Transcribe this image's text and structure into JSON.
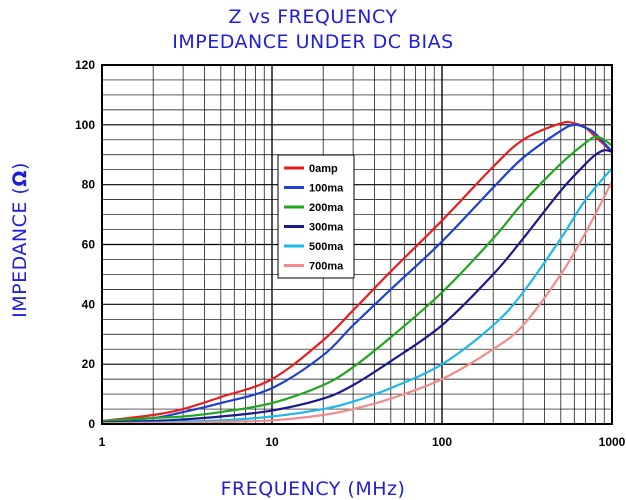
{
  "chart_data": {
    "type": "line",
    "title": "Z vs FREQUENCY",
    "subtitle": "IMPEDANCE UNDER DC BIAS",
    "xlabel": "FREQUENCY (MHz)",
    "ylabel_prefix": "IMPEDANCE (",
    "ylabel_symbol": "Ω",
    "ylabel_suffix": ")",
    "xscale": "log",
    "xlim": [
      1,
      1000
    ],
    "ylim": [
      0,
      120
    ],
    "xticks": [
      "1",
      "10",
      "100",
      "1000"
    ],
    "yticks": [
      "0",
      "20",
      "40",
      "60",
      "80",
      "100",
      "120"
    ],
    "grid": true,
    "legend_position": "center-left",
    "text_color": "#1f1fd8",
    "series": [
      {
        "name": "0amp",
        "color": "#e81e1e",
        "x": [
          1,
          2,
          3,
          5,
          10,
          20,
          30,
          50,
          100,
          200,
          300,
          500,
          600,
          700,
          800,
          1000
        ],
        "y": [
          1,
          3,
          5,
          9,
          15,
          28,
          38,
          51,
          68,
          86,
          95,
          100.5,
          100.5,
          99,
          96,
          91
        ]
      },
      {
        "name": "100ma",
        "color": "#1f3fd0",
        "x": [
          1,
          2,
          3,
          5,
          10,
          20,
          30,
          50,
          100,
          200,
          300,
          500,
          600,
          700,
          800,
          1000
        ],
        "y": [
          1,
          2,
          4,
          7,
          12,
          23,
          33,
          45,
          61,
          79,
          89,
          98,
          100,
          99,
          97,
          91
        ]
      },
      {
        "name": "200ma",
        "color": "#1fa81f",
        "x": [
          1,
          2,
          3,
          5,
          10,
          20,
          30,
          50,
          100,
          200,
          300,
          500,
          700,
          800,
          900,
          1000
        ],
        "y": [
          1,
          2,
          2.5,
          4,
          7,
          13,
          19,
          29,
          44,
          62,
          74,
          87,
          94,
          96,
          95,
          93
        ]
      },
      {
        "name": "300ma",
        "color": "#1a1a8c",
        "x": [
          1,
          2,
          3,
          5,
          10,
          20,
          30,
          50,
          100,
          200,
          300,
          500,
          700,
          800,
          900,
          1000
        ],
        "y": [
          0.5,
          1,
          1.5,
          2.5,
          4.5,
          8.5,
          13,
          21,
          33,
          50,
          62,
          78,
          87,
          90,
          91.5,
          91
        ]
      },
      {
        "name": "500ma",
        "color": "#1fb8ea",
        "x": [
          1,
          2,
          3,
          5,
          10,
          20,
          30,
          50,
          100,
          200,
          300,
          500,
          700,
          1000
        ],
        "y": [
          0.3,
          0.5,
          0.8,
          1.2,
          2.5,
          5,
          7.5,
          12,
          20,
          33,
          44,
          62,
          75,
          85.5
        ]
      },
      {
        "name": "700ma",
        "color": "#f28b8b",
        "x": [
          1,
          2,
          3,
          5,
          10,
          20,
          30,
          50,
          100,
          200,
          300,
          500,
          700,
          1000
        ],
        "y": [
          0.2,
          0.3,
          0.4,
          0.7,
          1.2,
          3,
          5,
          8.5,
          15,
          25,
          33,
          50,
          64,
          81
        ]
      }
    ]
  }
}
